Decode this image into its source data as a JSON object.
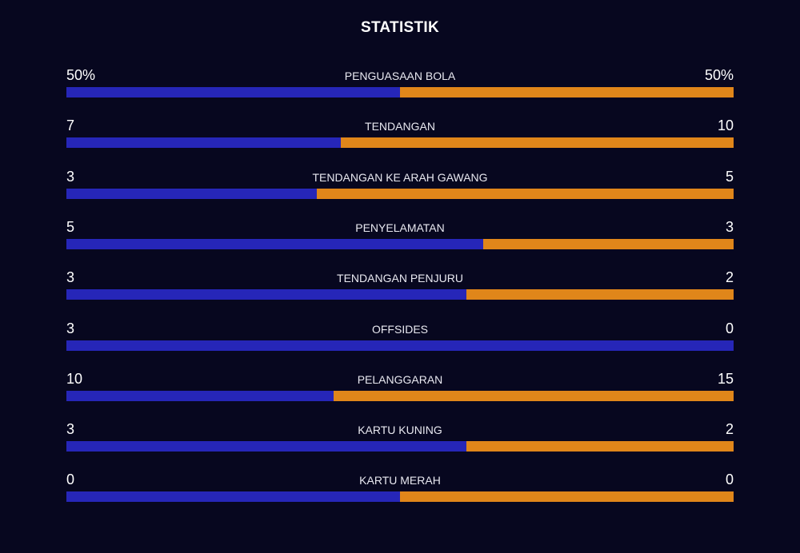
{
  "title": "STATISTIK",
  "colors": {
    "background": "#07071f",
    "home": "#2626b8",
    "away": "#e0861a"
  },
  "stats": [
    {
      "label": "PENGUASAAN BOLA",
      "home": "50%",
      "away": "50%",
      "home_share": 0.5
    },
    {
      "label": "TENDANGAN",
      "home": "7",
      "away": "10",
      "home_share": 0.4118
    },
    {
      "label": "TENDANGAN KE ARAH GAWANG",
      "home": "3",
      "away": "5",
      "home_share": 0.375
    },
    {
      "label": "PENYELAMATAN",
      "home": "5",
      "away": "3",
      "home_share": 0.625
    },
    {
      "label": "TENDANGAN PENJURU",
      "home": "3",
      "away": "2",
      "home_share": 0.6
    },
    {
      "label": "OFFSIDES",
      "home": "3",
      "away": "0",
      "home_share": 1.0
    },
    {
      "label": "PELANGGARAN",
      "home": "10",
      "away": "15",
      "home_share": 0.4
    },
    {
      "label": "KARTU KUNING",
      "home": "3",
      "away": "2",
      "home_share": 0.6
    },
    {
      "label": "KARTU MERAH",
      "home": "0",
      "away": "0",
      "home_share": 0.5
    }
  ]
}
